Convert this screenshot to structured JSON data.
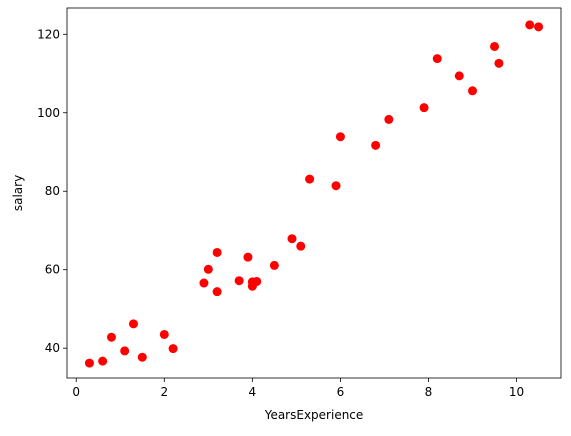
{
  "chart_data": {
    "type": "scatter",
    "title": "",
    "xlabel": "YearsExperience",
    "ylabel": "salary",
    "xlim": [
      -0.21,
      11.01
    ],
    "ylim": [
      32.4,
      126.7
    ],
    "xticks": [
      0,
      2,
      4,
      6,
      8,
      10
    ],
    "yticks": [
      40,
      60,
      80,
      100,
      120
    ],
    "grid": false,
    "marker_color": "#ff0000",
    "series": [
      {
        "x": [
          0.3,
          0.6,
          0.8,
          1.1,
          1.3,
          1.5,
          2.0,
          2.2,
          2.9,
          3.0,
          3.2,
          3.2,
          3.7,
          3.9,
          4.0,
          4.0,
          4.1,
          4.5,
          4.9,
          5.1,
          5.3,
          5.9,
          6.0,
          6.8,
          7.1,
          7.9,
          8.2,
          8.7,
          9.0,
          9.5,
          9.6,
          10.3,
          10.5
        ],
        "y": [
          36.2,
          36.7,
          42.8,
          39.3,
          46.2,
          37.7,
          43.5,
          39.9,
          56.6,
          60.1,
          54.4,
          64.4,
          57.2,
          63.2,
          55.8,
          56.9,
          57.0,
          61.1,
          67.9,
          66.0,
          83.1,
          81.4,
          93.9,
          91.7,
          98.3,
          101.3,
          113.8,
          109.4,
          105.6,
          116.9,
          112.6,
          122.4,
          121.9
        ]
      }
    ]
  }
}
